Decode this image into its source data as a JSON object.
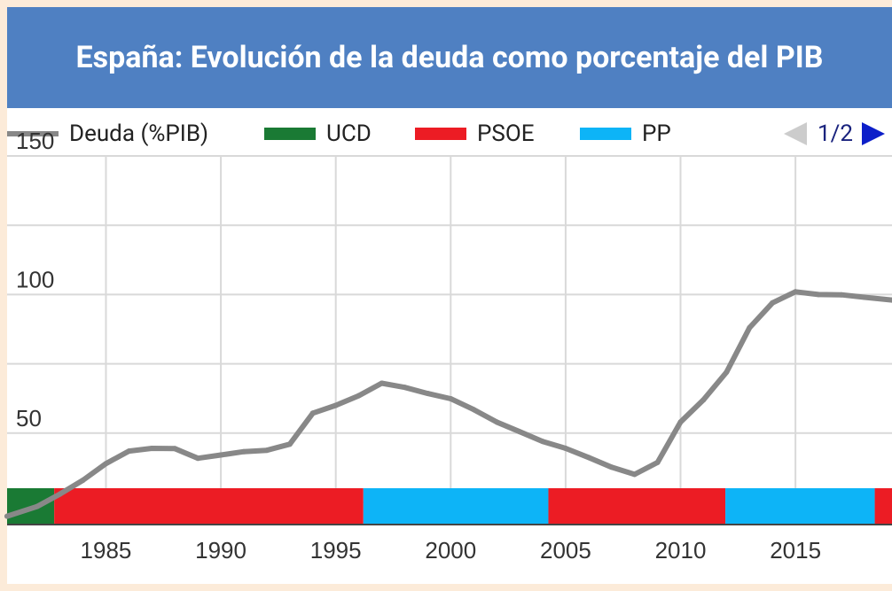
{
  "colors": {
    "header": "#4f80c2",
    "debt_line": "#888888",
    "UCD": "#1a7a34",
    "PSOE": "#ec1c24",
    "PP": "#0db4f7",
    "grid": "#d9d9d9"
  },
  "pager": {
    "text": "1/2",
    "prev_icon": "triangle-left-icon",
    "next_icon": "triangle-right-icon"
  },
  "chart_data": {
    "type": "line",
    "title": "España: Evolución de la deuda como porcentaje del PIB",
    "xlabel": "",
    "ylabel": "",
    "xlim": [
      1980.7,
      2019.2
    ],
    "ylim": [
      17,
      150
    ],
    "x_ticks": [
      1985,
      1990,
      1995,
      2000,
      2005,
      2010,
      2015
    ],
    "y_ticks": [
      50,
      100,
      150
    ],
    "grid": true,
    "legend_position": "top",
    "legend": [
      {
        "label": "Deuda (%PIB)",
        "kind": "line"
      },
      {
        "label": "UCD",
        "kind": "box"
      },
      {
        "label": "PSOE",
        "kind": "box"
      },
      {
        "label": "PP",
        "kind": "box"
      }
    ],
    "series": [
      {
        "name": "Deuda (%PIB)",
        "x": [
          1980.7,
          1982,
          1983,
          1984,
          1985,
          1986,
          1987,
          1988,
          1989,
          1990,
          1991,
          1992,
          1993,
          1994,
          1995,
          1996,
          1997,
          1998,
          1999,
          2000,
          2001,
          2002,
          2003,
          2004,
          2005,
          2006,
          2007,
          2008,
          2009,
          2010,
          2011,
          2012,
          2013,
          2014,
          2015,
          2016,
          2017,
          2018,
          2019.2
        ],
        "values": [
          20,
          23.5,
          28,
          33,
          39,
          43.5,
          44.5,
          44.4,
          40.9,
          42.1,
          43.3,
          43.8,
          46,
          57.2,
          60,
          63.5,
          68,
          66.5,
          64.3,
          62.4,
          58.5,
          54,
          50.5,
          47,
          44.5,
          41.2,
          37.7,
          35.1,
          39.4,
          54,
          62,
          72,
          88,
          97,
          101,
          100,
          99.9,
          99,
          98
        ]
      }
    ],
    "government_periods": [
      {
        "party": "UCD",
        "start": 1980.7,
        "end": 1982.75
      },
      {
        "party": "PSOE",
        "start": 1982.75,
        "end": 1996.2
      },
      {
        "party": "PP",
        "start": 1996.2,
        "end": 2004.25
      },
      {
        "party": "PSOE",
        "start": 2004.25,
        "end": 2011.95
      },
      {
        "party": "PP",
        "start": 2011.95,
        "end": 2018.45
      },
      {
        "party": "PSOE",
        "start": 2018.45,
        "end": 2019.2
      }
    ]
  }
}
